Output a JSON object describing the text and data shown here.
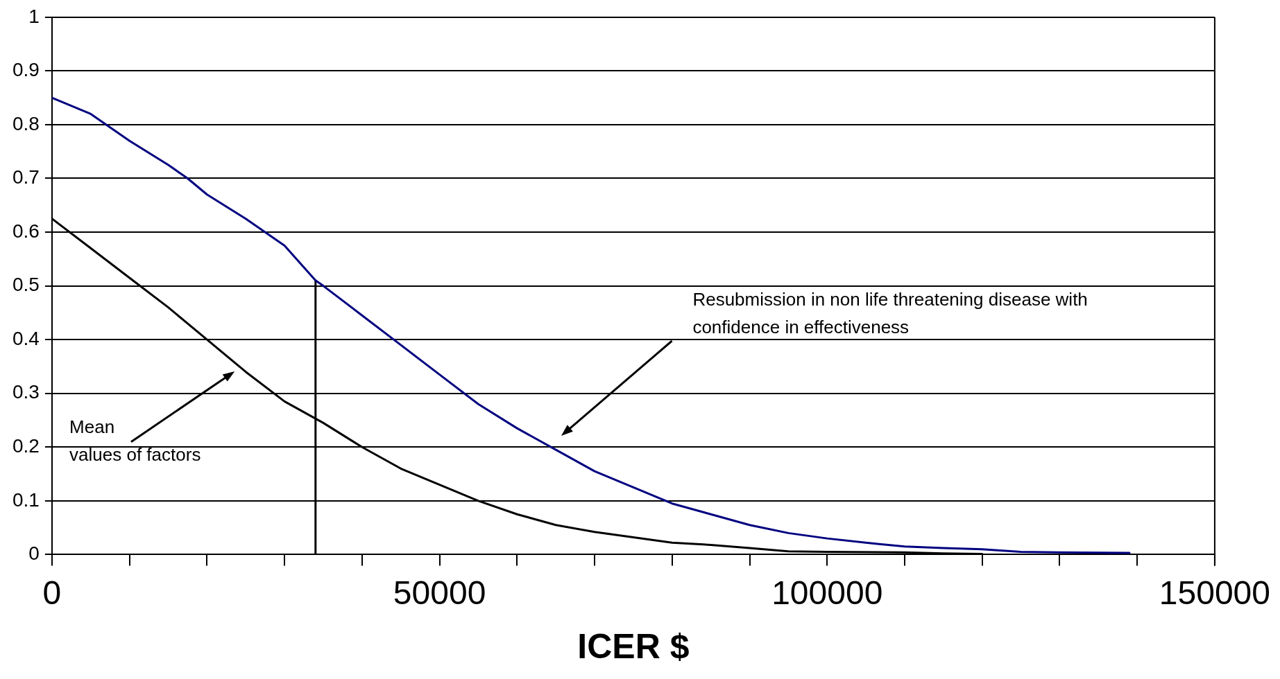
{
  "chart_data": {
    "type": "line",
    "xlabel": "ICER $",
    "xlim": [
      0,
      150000
    ],
    "xticks": [
      0,
      {
        "value": 10000,
        "label": null
      },
      {
        "value": 20000,
        "label": null
      },
      {
        "value": 30000,
        "label": null
      },
      {
        "value": 40000,
        "label": null
      },
      50000,
      {
        "value": 60000,
        "label": null
      },
      {
        "value": 70000,
        "label": null
      },
      {
        "value": 80000,
        "label": null
      },
      {
        "value": 90000,
        "label": null
      },
      100000,
      {
        "value": 110000,
        "label": null
      },
      {
        "value": 120000,
        "label": null
      },
      {
        "value": 130000,
        "label": null
      },
      {
        "value": 140000,
        "label": null
      },
      150000
    ],
    "ylim": [
      0,
      1
    ],
    "yticks": [
      0,
      0.1,
      0.2,
      0.3,
      0.4,
      0.5,
      0.6,
      0.7,
      0.8,
      0.9,
      1
    ],
    "grid": "y",
    "legend": false,
    "marker": "none",
    "line_style": "solid",
    "series": [
      {
        "color": "#000080",
        "x": [
          0,
          5000,
          10000,
          15000,
          17500,
          20000,
          25000,
          30000,
          34000,
          35000,
          40000,
          45000,
          50000,
          55000,
          60000,
          65000,
          70000,
          75000,
          80000,
          85000,
          90000,
          95000,
          100000,
          105000,
          110000,
          115000,
          120000,
          125000,
          130000,
          139000
        ],
        "values": [
          0.85,
          0.82,
          0.77,
          0.725,
          0.7,
          0.67,
          0.625,
          0.575,
          0.51,
          0.5,
          0.445,
          0.39,
          0.335,
          0.28,
          0.235,
          0.195,
          0.155,
          0.125,
          0.095,
          0.075,
          0.055,
          0.04,
          0.03,
          0.022,
          0.015,
          0.012,
          0.01,
          0.005,
          0.004,
          0.003
        ]
      },
      {
        "color": "#000000",
        "x": [
          0,
          5000,
          10000,
          15000,
          20000,
          25000,
          30000,
          35000,
          40000,
          45000,
          50000,
          55000,
          60000,
          65000,
          70000,
          75000,
          80000,
          85000,
          90000,
          95000,
          100000,
          110000,
          115000,
          120000
        ],
        "values": [
          0.625,
          0.57,
          0.515,
          0.46,
          0.4,
          0.34,
          0.285,
          0.245,
          0.2,
          0.16,
          0.13,
          0.1,
          0.075,
          0.055,
          0.042,
          0.032,
          0.022,
          0.018,
          0.012,
          0.006,
          0.005,
          0.004,
          0.002,
          0.001
        ]
      },
      {
        "color": "#000000",
        "x": [
          34000,
          34000
        ],
        "values": [
          0,
          0.51
        ]
      }
    ],
    "annotations": [
      "Mean\nvalues of factors",
      "Resubmission in non life threatening disease with\nconfidence in effectiveness"
    ]
  }
}
